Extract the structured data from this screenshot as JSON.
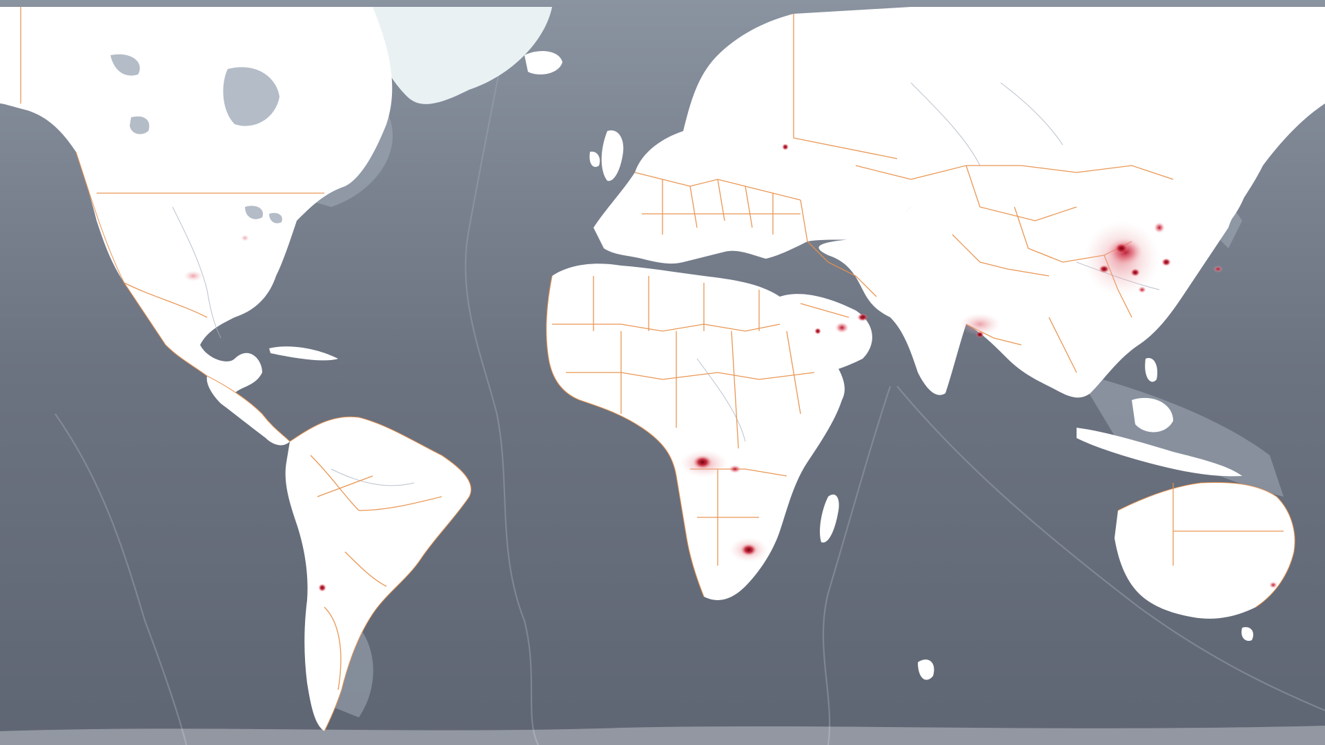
{
  "map": {
    "basemap_style": "dark-gray bathymetry with white land",
    "colors": {
      "ocean": "#6b7280",
      "ocean_light": "#9aa3af",
      "land": "#ffffff",
      "border": "#e8904a",
      "hotspot_low": "#f6c6c6",
      "hotspot_mid": "#d9485a",
      "hotspot_high": "#7a0010"
    },
    "layers": [
      "country-borders",
      "coastlines",
      "lakes",
      "ocean-bathymetry",
      "emission-hotspots"
    ],
    "hotspot_regions": [
      {
        "name": "eastern-china",
        "intensity": "high"
      },
      {
        "name": "central-africa-congo",
        "intensity": "high"
      },
      {
        "name": "south-africa-highveld",
        "intensity": "high"
      },
      {
        "name": "northern-india",
        "intensity": "medium"
      },
      {
        "name": "persian-gulf",
        "intensity": "medium"
      },
      {
        "name": "korea-japan",
        "intensity": "medium"
      },
      {
        "name": "central-chile",
        "intensity": "medium"
      },
      {
        "name": "eastern-australia",
        "intensity": "low"
      },
      {
        "name": "russia-volga",
        "intensity": "low"
      }
    ]
  }
}
